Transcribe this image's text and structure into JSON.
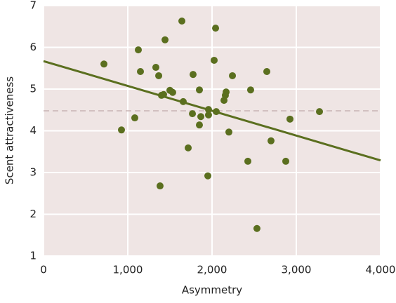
{
  "chart_data": {
    "type": "scatter",
    "x_label": "Asymmetry",
    "y_label": "Scent attractiveness",
    "x": [
      717,
      925,
      1083,
      1125,
      1150,
      1333,
      1367,
      1383,
      1400,
      1442,
      1425,
      1500,
      1533,
      1642,
      1658,
      1717,
      1767,
      1775,
      1850,
      1867,
      1850,
      1950,
      1958,
      1958,
      2025,
      2042,
      2050,
      2142,
      2158,
      2167,
      2200,
      2242,
      2425,
      2458,
      2533,
      2650,
      2700,
      2875,
      2925,
      3275
    ],
    "values": [
      5.6,
      4.02,
      4.31,
      5.94,
      5.42,
      5.52,
      5.32,
      2.68,
      4.85,
      6.18,
      4.87,
      4.97,
      4.92,
      6.63,
      4.7,
      3.59,
      4.41,
      5.35,
      4.98,
      4.34,
      4.14,
      2.92,
      4.38,
      4.51,
      5.69,
      6.46,
      4.46,
      4.73,
      4.85,
      4.93,
      3.97,
      5.32,
      3.27,
      4.98,
      1.66,
      5.42,
      3.76,
      3.27,
      4.28,
      4.46
    ],
    "color": "#5b6f1f",
    "trend_line": {
      "x": [
        0,
        4000
      ],
      "values": [
        5.67,
        3.29
      ],
      "color": "#5b6f1f"
    },
    "mean_line": 4.48,
    "xlim": [
      0,
      4000
    ],
    "ylim": [
      1,
      7
    ],
    "xticks": [
      0,
      {
        "value": 1000,
        "label": "1,000"
      },
      {
        "value": 2000,
        "label": "2,000"
      },
      {
        "value": 3000,
        "label": "3,000"
      },
      {
        "value": 4000,
        "label": "4,000"
      }
    ],
    "yticks": [
      1,
      2,
      3,
      4,
      5,
      6,
      7
    ],
    "grid": true
  }
}
